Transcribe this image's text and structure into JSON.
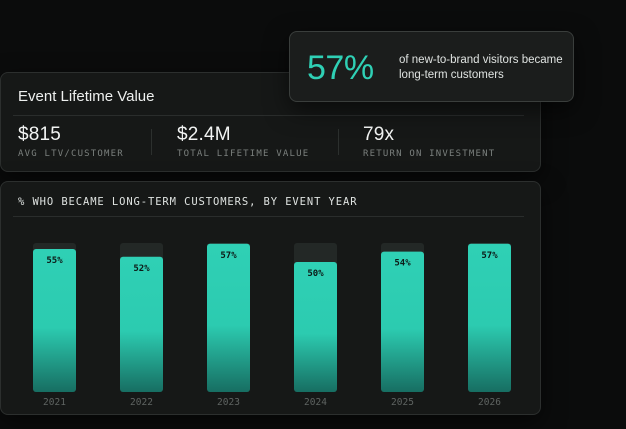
{
  "ltv": {
    "title": "Event Lifetime Value",
    "metrics": [
      {
        "value": "$815",
        "label": "AVG LTV/CUSTOMER"
      },
      {
        "value": "$2.4M",
        "label": "TOTAL LIFETIME VALUE"
      },
      {
        "value": "79x",
        "label": "RETURN ON INVESTMENT"
      }
    ]
  },
  "callout": {
    "value": "57%",
    "text": "of new-to-brand visitors became long-term customers"
  },
  "colors": {
    "accent": "#2fd0b5",
    "track": "#232826",
    "background": "#0b0c0c"
  },
  "chart_data": {
    "type": "bar",
    "title": "% WHO BECAME LONG-TERM CUSTOMERS, BY EVENT YEAR",
    "categories": [
      "2021",
      "2022",
      "2023",
      "2024",
      "2025",
      "2026"
    ],
    "values": [
      55,
      52,
      57,
      50,
      54,
      57
    ],
    "data_labels": [
      "55%",
      "52%",
      "57%",
      "50%",
      "54%",
      "57%"
    ],
    "ylim": [
      0,
      100
    ],
    "grid": false,
    "legend": "none"
  }
}
